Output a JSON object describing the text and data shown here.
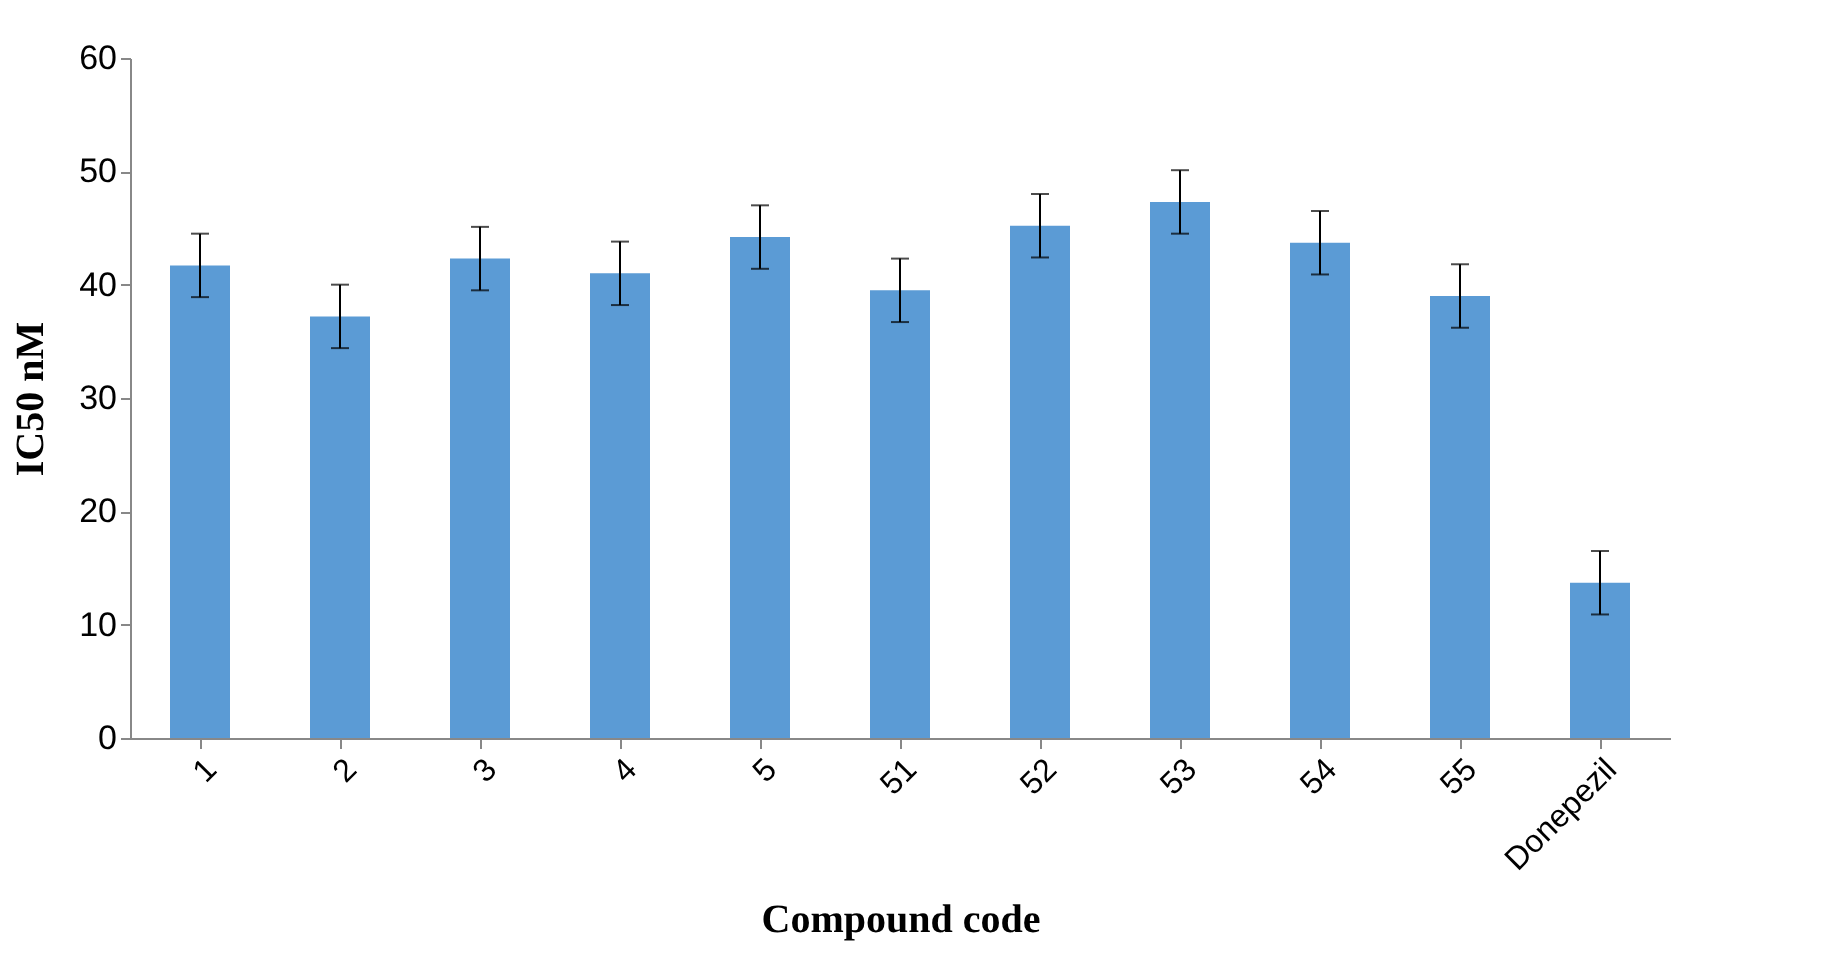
{
  "chart_data": {
    "type": "bar",
    "xlabel": "Compound code",
    "ylabel": "IC50 nM",
    "categories": [
      "1",
      "2",
      "3",
      "4",
      "5",
      "51",
      "52",
      "53",
      "54",
      "55",
      "Donepezil"
    ],
    "values": [
      41.7,
      37.2,
      42.3,
      41,
      44.2,
      39.5,
      45.2,
      47.3,
      43.7,
      39,
      13.7
    ],
    "errors": [
      2.8,
      2.8,
      2.8,
      2.8,
      2.8,
      2.8,
      2.8,
      2.8,
      2.8,
      2.8,
      2.8
    ],
    "color": "#5b9bd5",
    "ylim": [
      0,
      60
    ],
    "yticks": [
      0,
      10,
      20,
      30,
      40,
      50,
      60
    ],
    "grid": false
  }
}
